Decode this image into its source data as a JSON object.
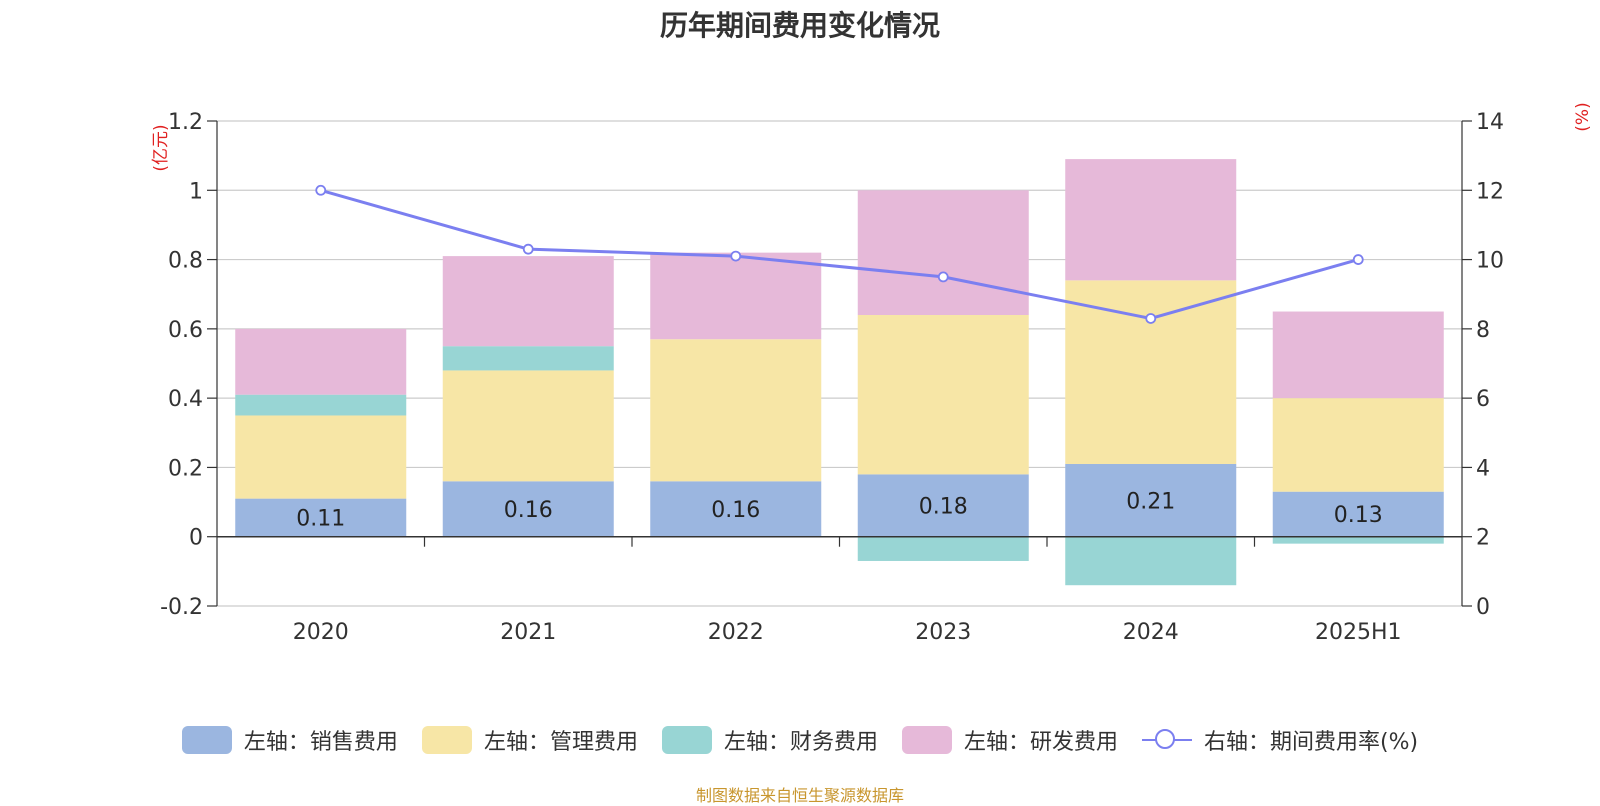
{
  "chart_data": {
    "type": "bar",
    "title": "历年期间费用变化情况",
    "categories": [
      "2020",
      "2021",
      "2022",
      "2023",
      "2024",
      "2025H1"
    ],
    "stacked": true,
    "series": [
      {
        "name": "左轴：销售费用",
        "axis": "left",
        "color": "#9BB6E0",
        "values": [
          0.11,
          0.16,
          0.16,
          0.18,
          0.21,
          0.13
        ],
        "show_labels": true
      },
      {
        "name": "左轴：管理费用",
        "axis": "left",
        "color": "#F7E6A6",
        "values": [
          0.24,
          0.32,
          0.41,
          0.46,
          0.53,
          0.27
        ]
      },
      {
        "name": "左轴：财务费用",
        "axis": "left",
        "color": "#98D5D4",
        "values": [
          0.06,
          0.07,
          0.0,
          -0.07,
          -0.14,
          -0.02
        ]
      },
      {
        "name": "左轴：研发费用",
        "axis": "left",
        "color": "#E6B9D9",
        "values": [
          0.19,
          0.26,
          0.25,
          0.36,
          0.35,
          0.25
        ]
      },
      {
        "name": "右轴：期间费用率(%)",
        "axis": "right",
        "type": "line",
        "color": "#7B7FF0",
        "values": [
          12.0,
          10.3,
          10.1,
          9.5,
          8.3,
          10.0
        ]
      }
    ],
    "left_axis": {
      "unit": "(亿元)",
      "ylim": [
        -0.2,
        1.2
      ],
      "ticks": [
        -0.2,
        0,
        0.2,
        0.4,
        0.6,
        0.8,
        1,
        1.2
      ],
      "tick_labels": [
        "-0.2",
        "0",
        "0.2",
        "0.4",
        "0.6",
        "0.8",
        "1",
        "1.2"
      ]
    },
    "right_axis": {
      "unit": "(%)",
      "ylim": [
        0,
        14
      ],
      "ticks": [
        0,
        2,
        4,
        6,
        8,
        10,
        12,
        14
      ],
      "tick_labels": [
        "0",
        "2",
        "4",
        "6",
        "8",
        "10",
        "12",
        "14"
      ]
    },
    "grid": true,
    "legend_position": "bottom"
  },
  "source_note": "制图数据来自恒生聚源数据库"
}
